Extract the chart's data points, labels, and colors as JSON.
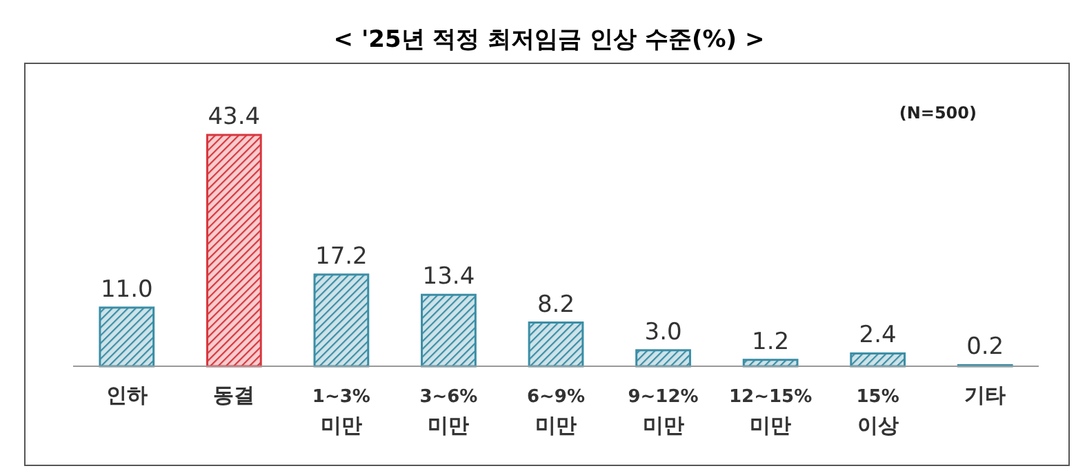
{
  "chart_data": {
    "type": "bar",
    "title": "< '25년 적정 최저임금 인상 수준(%) >",
    "categories": [
      "인하",
      "동결",
      "1~3%\n미만",
      "3~6%\n미만",
      "6~9%\n미만",
      "9~12%\n미만",
      "12~15%\n미만",
      "15%\n이상",
      "기타"
    ],
    "values": [
      11.0,
      43.4,
      17.2,
      13.4,
      8.2,
      3.0,
      1.2,
      2.4,
      0.2
    ],
    "colors": [
      "#3a8ea6",
      "#d9363e",
      "#3a8ea6",
      "#3a8ea6",
      "#3a8ea6",
      "#3a8ea6",
      "#3a8ea6",
      "#3a8ea6",
      "#3a8ea6"
    ],
    "value_labels": [
      "11.0",
      "43.4",
      "17.2",
      "13.4",
      "8.2",
      "3.0",
      "1.2",
      "2.4",
      "0.2"
    ],
    "annotations": [
      "(N=500)"
    ]
  }
}
